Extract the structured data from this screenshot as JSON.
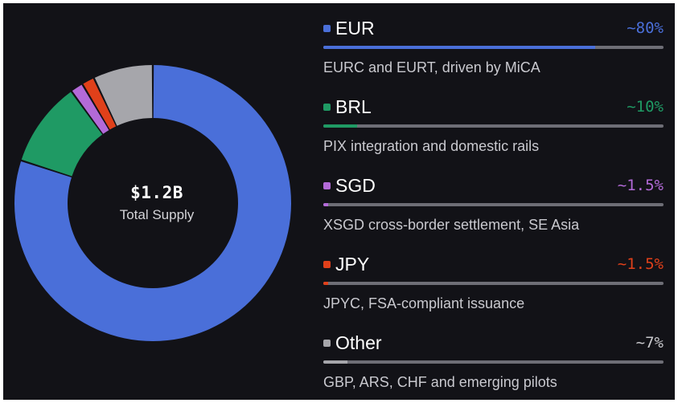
{
  "chart_data": {
    "type": "pie",
    "center": {
      "value": "$1.2B",
      "label": "Total Supply"
    },
    "slices": [
      {
        "label": "EUR",
        "value": 80,
        "percent_label": "~80%",
        "color": "#4a6fd9",
        "description": "EURC and EURT, driven by MiCA"
      },
      {
        "label": "BRL",
        "value": 10,
        "percent_label": "~10%",
        "color": "#1f9a64",
        "description": "PIX integration and domestic rails"
      },
      {
        "label": "SGD",
        "value": 1.5,
        "percent_label": "~1.5%",
        "color": "#b36ad8",
        "description": "XSGD cross-border settlement, SE Asia"
      },
      {
        "label": "JPY",
        "value": 1.5,
        "percent_label": "~1.5%",
        "color": "#e0401a",
        "description": "JPYC, FSA-compliant issuance"
      },
      {
        "label": "Other",
        "value": 7,
        "percent_label": "~7%",
        "color": "#a6a6ab",
        "description": "GBP, ARS, CHF and emerging pilots"
      }
    ],
    "percent_label_colors": [
      "#4a6fd9",
      "#1f9a64",
      "#b36ad8",
      "#e0401a",
      "#c8c8cc"
    ]
  }
}
